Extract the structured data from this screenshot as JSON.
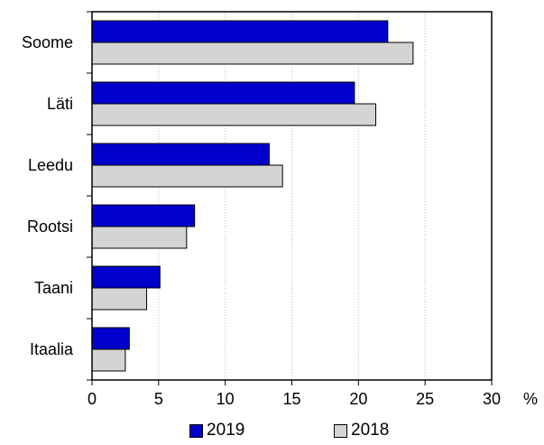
{
  "chart_data": {
    "type": "bar",
    "orientation": "horizontal",
    "categories": [
      "Soome",
      "Läti",
      "Leedu",
      "Rootsi",
      "Taani",
      "Itaalia"
    ],
    "series": [
      {
        "name": "2019",
        "values": [
          22.2,
          19.7,
          13.3,
          7.7,
          5.1,
          2.8
        ],
        "color": "#0000cc"
      },
      {
        "name": "2018",
        "values": [
          24.1,
          21.3,
          14.3,
          7.1,
          4.1,
          2.5
        ],
        "color": "#d4d4d4"
      }
    ],
    "x_ticks": [
      0,
      5,
      10,
      15,
      20,
      25,
      30
    ],
    "xlim": [
      0,
      30
    ],
    "x_unit": "%",
    "grid": "vertical dotted",
    "legend_position": "bottom"
  }
}
